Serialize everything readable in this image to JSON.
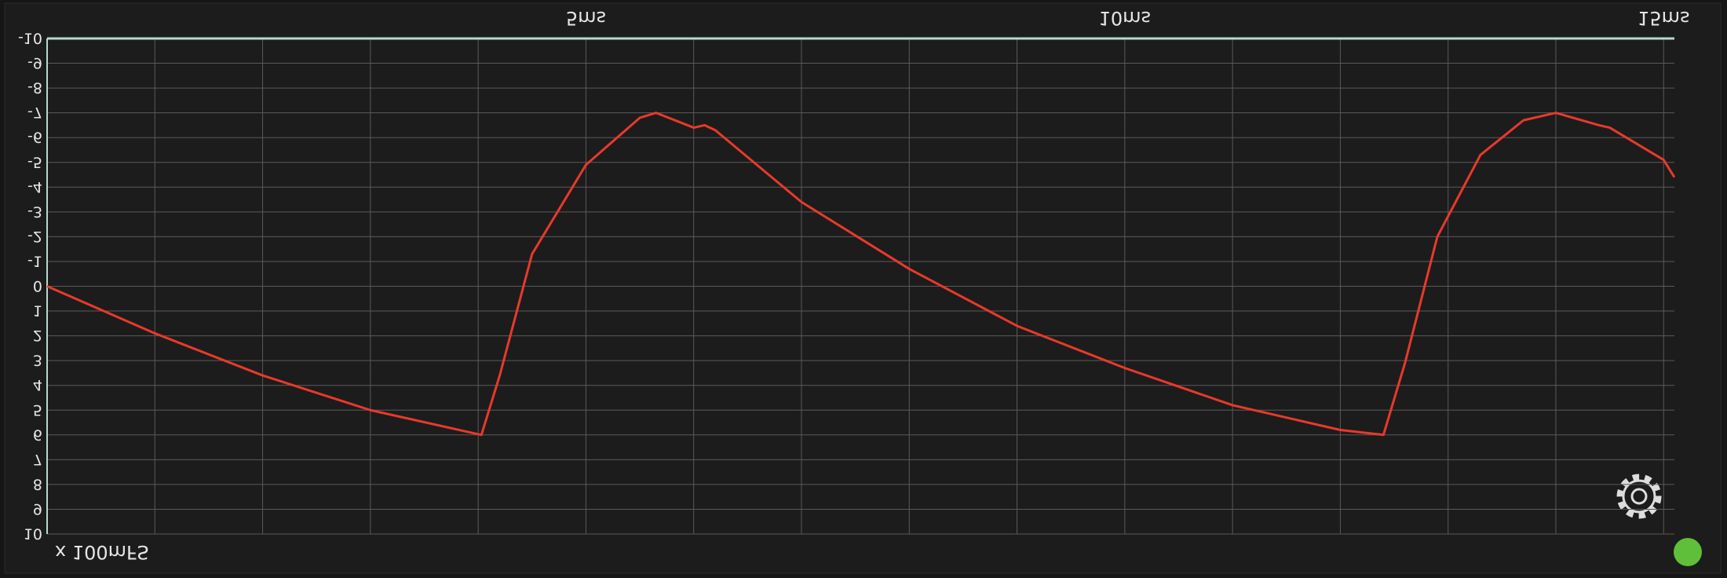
{
  "chart_data": {
    "type": "line",
    "x": [
      0,
      1,
      2,
      3,
      4.03,
      4.2,
      4.5,
      5,
      5.5,
      5.65,
      6,
      6.1,
      6.2,
      7,
      8,
      9,
      10,
      11,
      12,
      12.4,
      12.6,
      12.9,
      13.3,
      13.7,
      14.0,
      14.4,
      14.5,
      15,
      15.1
    ],
    "series": [
      {
        "color": "#e8392b",
        "values": [
          0,
          1.9,
          3.6,
          5.0,
          6.0,
          3.6,
          -1.3,
          -4.9,
          -6.8,
          -7.0,
          -6.4,
          -6.5,
          -6.3,
          -3.4,
          -0.7,
          1.6,
          3.3,
          4.8,
          5.8,
          6.0,
          3.1,
          -2.0,
          -5.3,
          -6.7,
          -7.0,
          -6.5,
          -6.4,
          -5.1,
          -4.4
        ]
      }
    ],
    "xlim": [
      0,
      15.1
    ],
    "xticks": [
      {
        "value": 5,
        "label": "5ms"
      },
      {
        "value": 10,
        "label": "10ms"
      },
      {
        "value": 15,
        "label": "15ms"
      }
    ],
    "xgrid": [
      0,
      1,
      2,
      3,
      4,
      5,
      6,
      7,
      8,
      9,
      10,
      11,
      12,
      13,
      14,
      15
    ],
    "ylim": [
      10,
      -10
    ],
    "yticks": [
      -10,
      -9,
      -8,
      -7,
      -6,
      -5,
      -4,
      -3,
      -2,
      -1,
      0,
      1,
      2,
      3,
      4,
      5,
      6,
      7,
      8,
      9,
      10
    ],
    "y_unit_label": "x 100mFS",
    "grid": true
  }
}
